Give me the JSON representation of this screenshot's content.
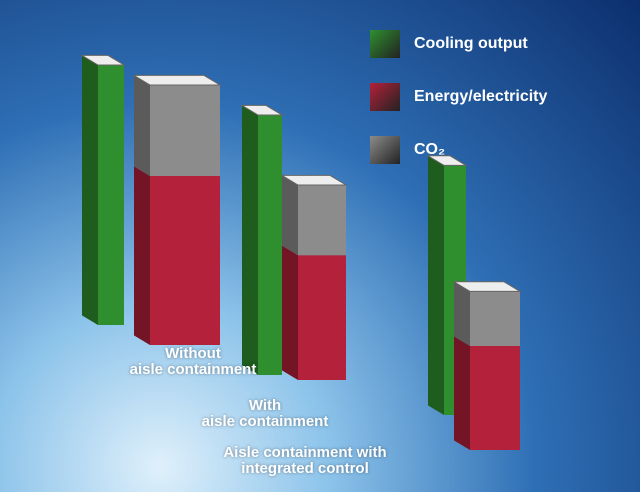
{
  "chart_data": {
    "type": "bar3d",
    "categories": [
      "Without\naisle containment",
      "With\naisle containment",
      "Aisle containment with\nintegrated control"
    ],
    "series": [
      {
        "name": "Cooling output",
        "color": "#2f8f2f",
        "values": [
          100,
          100,
          96
        ]
      },
      {
        "name": "Energy/electricity",
        "color": "#b3213a",
        "values": [
          65,
          48,
          40
        ]
      },
      {
        "name": "CO₂",
        "color": "#8c8c8c",
        "values": [
          35,
          27,
          21
        ]
      }
    ]
  }
}
